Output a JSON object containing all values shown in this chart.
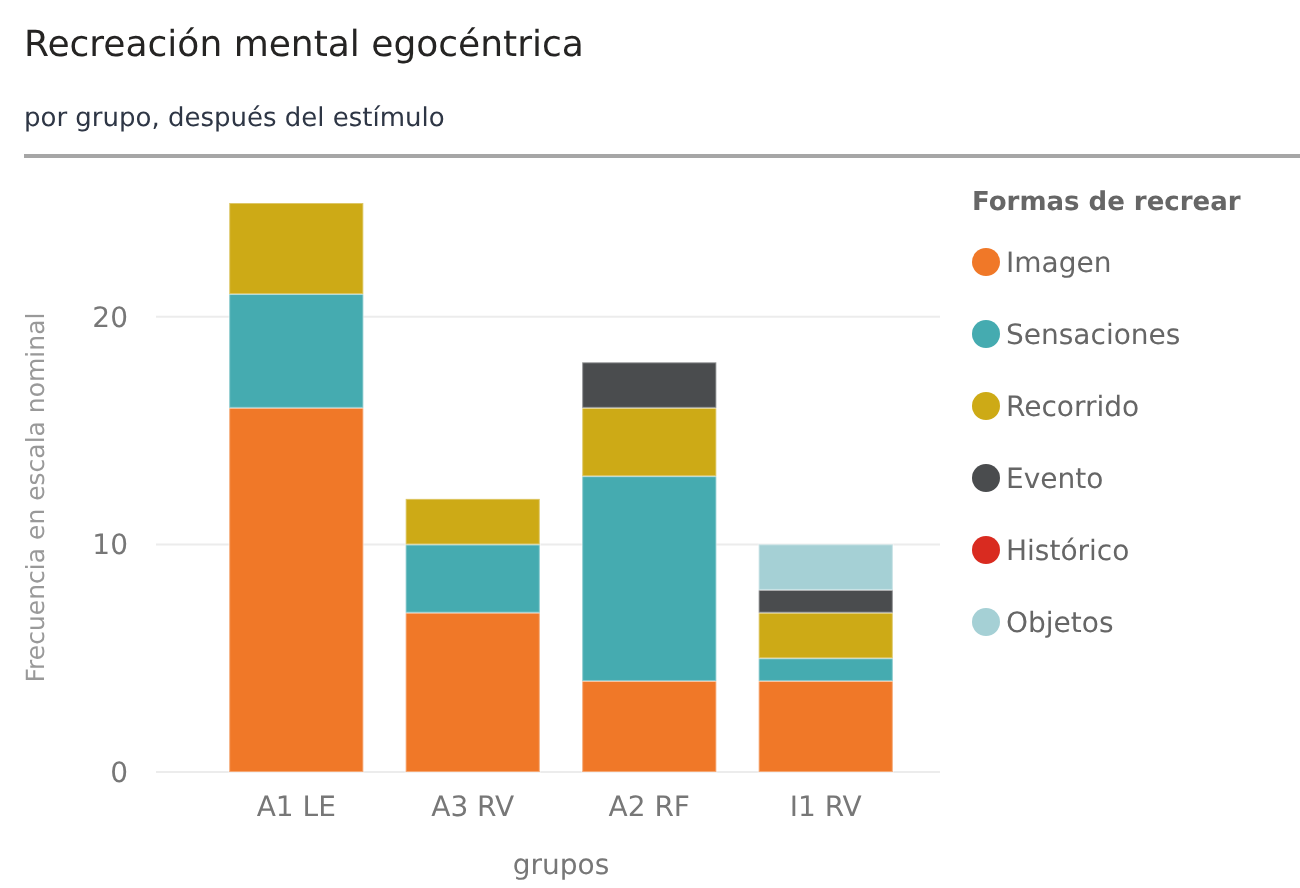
{
  "chart_data": {
    "type": "bar",
    "stacked": true,
    "title": "Recreación mental egocéntrica",
    "subtitle": "por grupo, después del estímulo",
    "xlabel": "grupos",
    "ylabel": "Frecuencia en escala nominal",
    "legend_title": "Formas de recrear",
    "categories": [
      "A1 LE",
      "A3 RV",
      "A2 RF",
      "I1 RV"
    ],
    "series": [
      {
        "name": "Imagen",
        "color": "#f07828",
        "values": [
          16,
          7,
          4,
          4
        ]
      },
      {
        "name": "Sensaciones",
        "color": "#45abb0",
        "values": [
          5,
          3,
          9,
          1
        ]
      },
      {
        "name": "Recorrido",
        "color": "#cdaa16",
        "values": [
          4,
          2,
          3,
          2
        ]
      },
      {
        "name": "Evento",
        "color": "#4a4c4e",
        "values": [
          0,
          0,
          2,
          1
        ]
      },
      {
        "name": "Histórico",
        "color": "#d92b20",
        "values": [
          0,
          0,
          0,
          0
        ]
      },
      {
        "name": "Objetos",
        "color": "#a5d0d5",
        "values": [
          0,
          0,
          0,
          2
        ]
      }
    ],
    "ylim": [
      0,
      25
    ],
    "yticks": [
      0,
      10,
      20
    ],
    "grid": "y",
    "legend": "top right"
  }
}
